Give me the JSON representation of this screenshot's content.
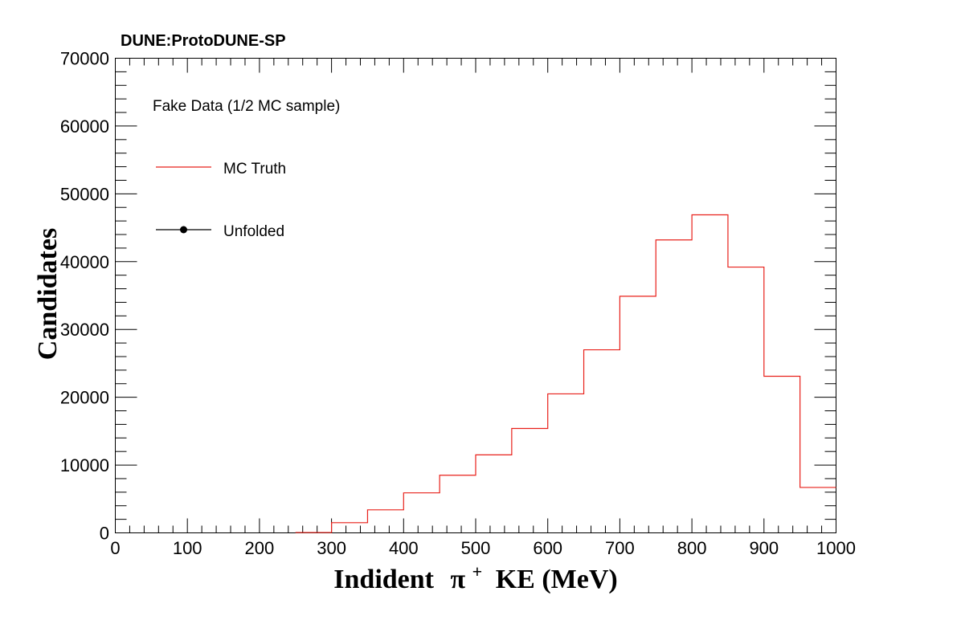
{
  "header": {
    "experiment_label": "DUNE:ProtoDUNE-SP"
  },
  "legend": {
    "title": "Fake Data (1/2 MC sample)",
    "entries": [
      {
        "label": "MC Truth",
        "color": "#e8201a",
        "style": "line"
      },
      {
        "label": "Unfolded",
        "color": "#000000",
        "style": "marker"
      }
    ]
  },
  "chart_data": {
    "type": "histogram",
    "xlabel_main": "Indident",
    "xlabel_symbol": "π",
    "xlabel_sup": "+",
    "xlabel_rest": "KE (MeV)",
    "ylabel": "Candidates",
    "xlim": [
      0,
      1000
    ],
    "ylim": [
      0,
      70000
    ],
    "x_ticks": [
      0,
      100,
      200,
      300,
      400,
      500,
      600,
      700,
      800,
      900,
      1000
    ],
    "y_ticks": [
      0,
      10000,
      20000,
      30000,
      40000,
      50000,
      60000,
      70000
    ],
    "series": [
      {
        "name": "MC Truth",
        "color": "#e8201a",
        "bin_edges": [
          0,
          50,
          100,
          150,
          200,
          250,
          300,
          350,
          400,
          450,
          500,
          550,
          600,
          650,
          700,
          750,
          800,
          850,
          900,
          950,
          1000
        ],
        "values": [
          0,
          0,
          0,
          0,
          0,
          50,
          1500,
          3400,
          5900,
          8500,
          11500,
          15400,
          20500,
          27000,
          34900,
          43200,
          46900,
          39200,
          23100,
          6700
        ]
      }
    ]
  }
}
